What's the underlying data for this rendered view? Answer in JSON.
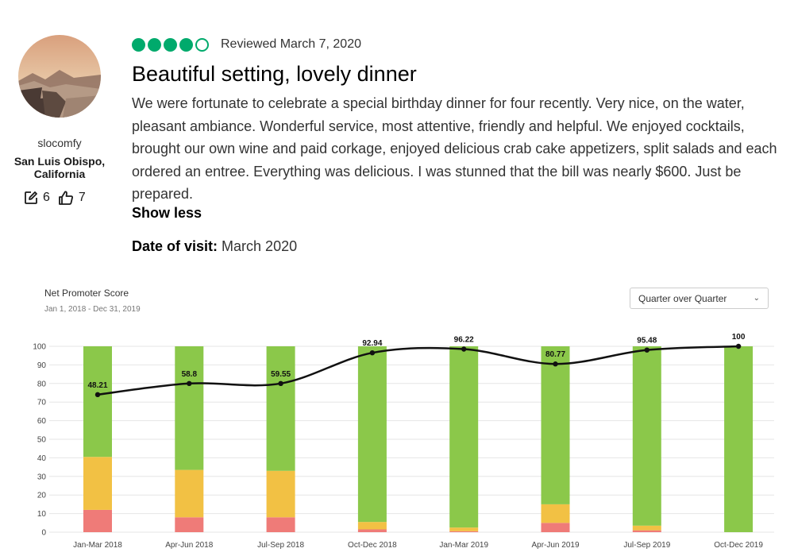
{
  "review": {
    "username": "slocomfy",
    "location": "San Luis Obispo, California",
    "contributions": "6",
    "helpful_votes": "7",
    "rating": 4,
    "rating_max": 5,
    "reviewed_date": "Reviewed March 7, 2020",
    "title": "Beautiful setting, lovely dinner",
    "body": "We were fortunate to celebrate a special birthday dinner for four recently. Very nice, on the water, pleasant ambiance. Wonderful service, most attentive, friendly and helpful. We enjoyed cocktails, brought our own wine and paid corkage, enjoyed delicious crab cake appetizers, split salads and each ordered an entree. Everything was delicious. I was stunned that the bill was nearly $600. Just be prepared.",
    "show_less": "Show less",
    "visit_label": "Date of visit:",
    "visit_value": "March 2020",
    "icons": {
      "contributions": "pencil-square-icon",
      "helpful": "thumbs-up-icon"
    },
    "accent_color": "#00aa6c"
  },
  "chart_header": {
    "title": "Net Promoter Score",
    "date_range": "Jan 1, 2018 - Dec 31, 2019",
    "period_select": "Quarter over Quarter"
  },
  "chart_data": {
    "type": "bar",
    "categories": [
      "Jan-Mar 2018",
      "Apr-Jun 2018",
      "Jul-Sep 2018",
      "Oct-Dec 2018",
      "Jan-Mar 2019",
      "Apr-Jun 2019",
      "Jul-Sep 2019",
      "Oct-Dec 2019"
    ],
    "stacked": true,
    "series": [
      {
        "color": "#ef7b78",
        "values": [
          12,
          8,
          8,
          1.5,
          0.5,
          5,
          1,
          0
        ]
      },
      {
        "color": "#f2c144",
        "values": [
          28.5,
          25.5,
          25,
          4,
          2,
          10,
          2.5,
          0
        ]
      },
      {
        "color": "#8bc84a",
        "values": [
          59.5,
          66.5,
          67,
          94.5,
          97.5,
          85,
          96.5,
          100
        ]
      }
    ],
    "line": {
      "color": "#111111",
      "values": [
        74,
        80,
        80,
        96.5,
        98.5,
        90.5,
        98,
        100
      ],
      "labels": [
        "48.21",
        "58.8",
        "59.55",
        "92.94",
        "96.22",
        "80.77",
        "95.48",
        "100"
      ]
    },
    "ylim": [
      0,
      100
    ],
    "yticks": [
      0,
      10,
      20,
      30,
      40,
      50,
      60,
      70,
      80,
      90,
      100
    ],
    "grid": true
  }
}
